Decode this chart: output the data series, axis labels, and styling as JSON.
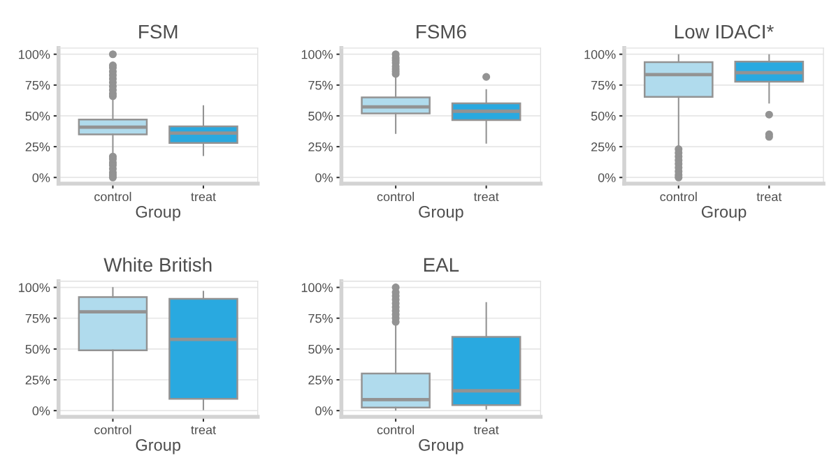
{
  "chart_data": [
    {
      "type": "box",
      "title": "FSM",
      "xlabel": "Group",
      "categories": [
        "control",
        "treat"
      ],
      "colors": [
        "#b0dbed",
        "#29a9e0"
      ],
      "ylim": [
        -5,
        105
      ],
      "yticks": [
        {
          "value": 0,
          "label": "0%"
        },
        {
          "value": 25,
          "label": "25%"
        },
        {
          "value": 50,
          "label": "50%"
        },
        {
          "value": 75,
          "label": "75%"
        },
        {
          "value": 100,
          "label": "100%"
        }
      ],
      "grid": "y",
      "boxes": [
        {
          "low": 19,
          "q1": 35,
          "median": 40.8,
          "q3": 47,
          "high": 64,
          "outliers": [
            66,
            68,
            71,
            74,
            77,
            80,
            83,
            86,
            89,
            91,
            100,
            17,
            15,
            12,
            10,
            7,
            4,
            2,
            0
          ]
        },
        {
          "low": 18,
          "q1": 28,
          "median": 36,
          "q3": 41.5,
          "high": 58
        }
      ]
    },
    {
      "type": "box",
      "title": "FSM6",
      "xlabel": "Group",
      "categories": [
        "control",
        "treat"
      ],
      "colors": [
        "#b0dbed",
        "#29a9e0"
      ],
      "ylim": [
        -5,
        105
      ],
      "yticks": [
        {
          "value": 0,
          "label": "0%"
        },
        {
          "value": 25,
          "label": "25%"
        },
        {
          "value": 50,
          "label": "50%"
        },
        {
          "value": 75,
          "label": "75%"
        },
        {
          "value": 100,
          "label": "100%"
        }
      ],
      "grid": "y",
      "boxes": [
        {
          "low": 36,
          "q1": 52,
          "median": 57.3,
          "q3": 65,
          "high": 81,
          "outliers": [
            84,
            86,
            88,
            90,
            93,
            95,
            97,
            100
          ]
        },
        {
          "low": 28,
          "q1": 46.6,
          "median": 53.8,
          "q3": 60.2,
          "high": 71,
          "outliers": [
            81.6
          ]
        }
      ]
    },
    {
      "type": "box",
      "title": "Low IDACI*",
      "xlabel": "Group",
      "categories": [
        "control",
        "treat"
      ],
      "colors": [
        "#b0dbed",
        "#29a9e0"
      ],
      "ylim": [
        -5,
        105
      ],
      "yticks": [
        {
          "value": 0,
          "label": "0%"
        },
        {
          "value": 25,
          "label": "25%"
        },
        {
          "value": 50,
          "label": "50%"
        },
        {
          "value": 75,
          "label": "75%"
        },
        {
          "value": 100,
          "label": "100%"
        }
      ],
      "grid": "y",
      "boxes": [
        {
          "low": 25,
          "q1": 65.4,
          "median": 83.5,
          "q3": 93.6,
          "high": 99.4,
          "outliers": [
            23,
            20,
            17,
            14,
            11,
            8,
            5,
            2,
            0
          ]
        },
        {
          "low": 60.6,
          "q1": 77.7,
          "median": 85,
          "q3": 94,
          "high": 99.4,
          "outliers": [
            51,
            35,
            33
          ]
        }
      ]
    },
    {
      "type": "box",
      "title": "White British",
      "xlabel": "Group",
      "categories": [
        "control",
        "treat"
      ],
      "colors": [
        "#b0dbed",
        "#29a9e0"
      ],
      "ylim": [
        -5,
        105
      ],
      "yticks": [
        {
          "value": 0,
          "label": "0%"
        },
        {
          "value": 25,
          "label": "25%"
        },
        {
          "value": 50,
          "label": "50%"
        },
        {
          "value": 75,
          "label": "75%"
        },
        {
          "value": 100,
          "label": "100%"
        }
      ],
      "grid": "y",
      "boxes": [
        {
          "low": 0,
          "q1": 49,
          "median": 80.2,
          "q3": 92.2,
          "high": 99.6
        },
        {
          "low": 1,
          "q1": 9.5,
          "median": 57.8,
          "q3": 90.7,
          "high": 96.7
        }
      ]
    },
    {
      "type": "box",
      "title": "EAL",
      "xlabel": "Group",
      "categories": [
        "control",
        "treat"
      ],
      "colors": [
        "#b0dbed",
        "#29a9e0"
      ],
      "ylim": [
        -5,
        105
      ],
      "yticks": [
        {
          "value": 0,
          "label": "0%"
        },
        {
          "value": 25,
          "label": "25%"
        },
        {
          "value": 50,
          "label": "50%"
        },
        {
          "value": 75,
          "label": "75%"
        },
        {
          "value": 100,
          "label": "100%"
        }
      ],
      "grid": "y",
      "boxes": [
        {
          "low": 0.6,
          "q1": 2.5,
          "median": 8.9,
          "q3": 30.1,
          "high": 70,
          "outliers": [
            72,
            75,
            78,
            81,
            84,
            87,
            90,
            93,
            96,
            100
          ]
        },
        {
          "low": 1.4,
          "q1": 4.5,
          "median": 16.1,
          "q3": 59.8,
          "high": 87.4
        }
      ]
    }
  ]
}
